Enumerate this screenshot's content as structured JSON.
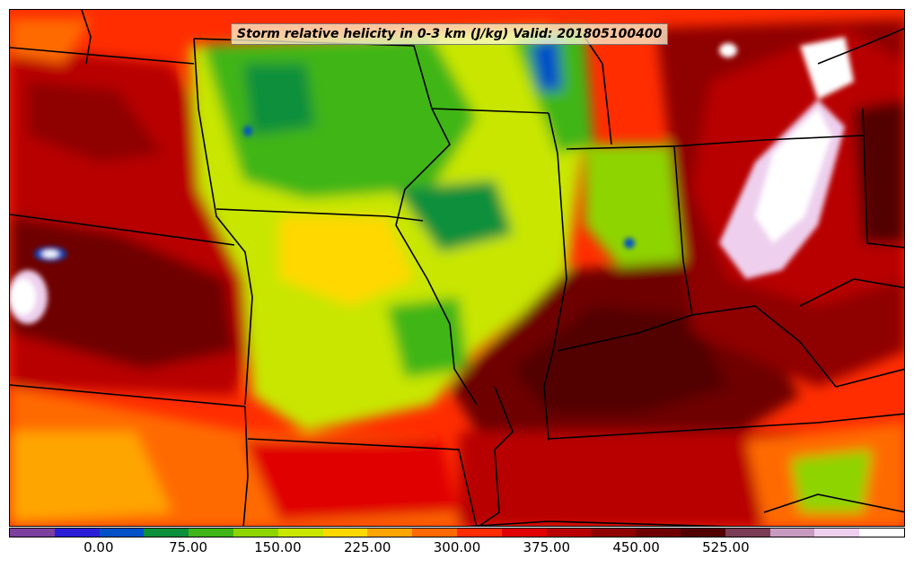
{
  "title": "Storm relative helicity in 0-3 km (J/kg) Valid: 201805100400",
  "colorbar": {
    "colors": [
      "#7b3f9e",
      "#2a1fd6",
      "#0050c8",
      "#0a8f3a",
      "#3fb517",
      "#8ed400",
      "#c8e600",
      "#ffd800",
      "#ffa500",
      "#ff6a00",
      "#ff2d00",
      "#e00000",
      "#b80000",
      "#8f0000",
      "#6e0000",
      "#520000",
      "#7a3d55",
      "#c79ac0",
      "#eed0ee",
      "#ffffff"
    ],
    "tick_labels": [
      "0.00",
      "75.00",
      "150.00",
      "225.00",
      "300.00",
      "375.00",
      "450.00",
      "525.00"
    ]
  }
}
